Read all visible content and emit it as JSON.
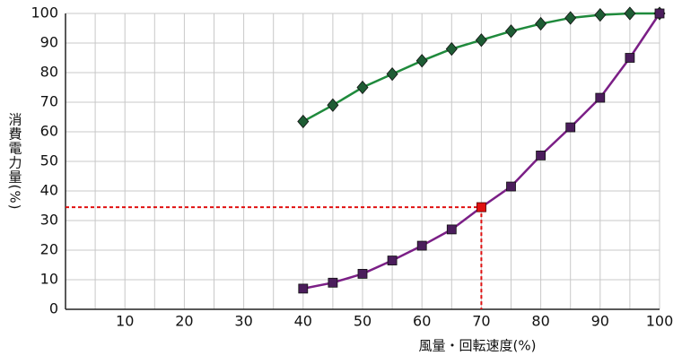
{
  "chart_data": {
    "type": "line",
    "x_label": "風量・回転速度(%)",
    "y_label": "消費電力量(%)",
    "x": [
      40,
      45,
      50,
      55,
      60,
      65,
      70,
      75,
      80,
      85,
      90,
      95,
      100
    ],
    "series": [
      {
        "color": "#1f8a3c",
        "marker": "diamond",
        "marker_color": "#1e5c34",
        "values": [
          63.5,
          69,
          75,
          79.5,
          84,
          88,
          91,
          94,
          96.5,
          98.5,
          99.5,
          100,
          100
        ]
      },
      {
        "color": "#7b1f86",
        "marker": "square",
        "marker_color": "#4b1d5c",
        "values": [
          7,
          9,
          12,
          16.5,
          21.5,
          27,
          34.5,
          41.5,
          52,
          61.5,
          71.5,
          85,
          100
        ]
      }
    ],
    "reference": {
      "x": 70,
      "y": 34.5,
      "color": "#e01010"
    },
    "xlim": [
      0,
      100
    ],
    "xticks": [
      10,
      20,
      30,
      40,
      50,
      60,
      70,
      80,
      90,
      100
    ],
    "x_minor_grid": [
      5,
      15,
      25,
      35,
      45,
      55,
      65,
      75,
      85,
      95
    ],
    "ylim": [
      0,
      100
    ],
    "yticks": [
      0,
      10,
      20,
      30,
      40,
      50,
      60,
      70,
      80,
      90,
      100
    ],
    "grid": true
  }
}
